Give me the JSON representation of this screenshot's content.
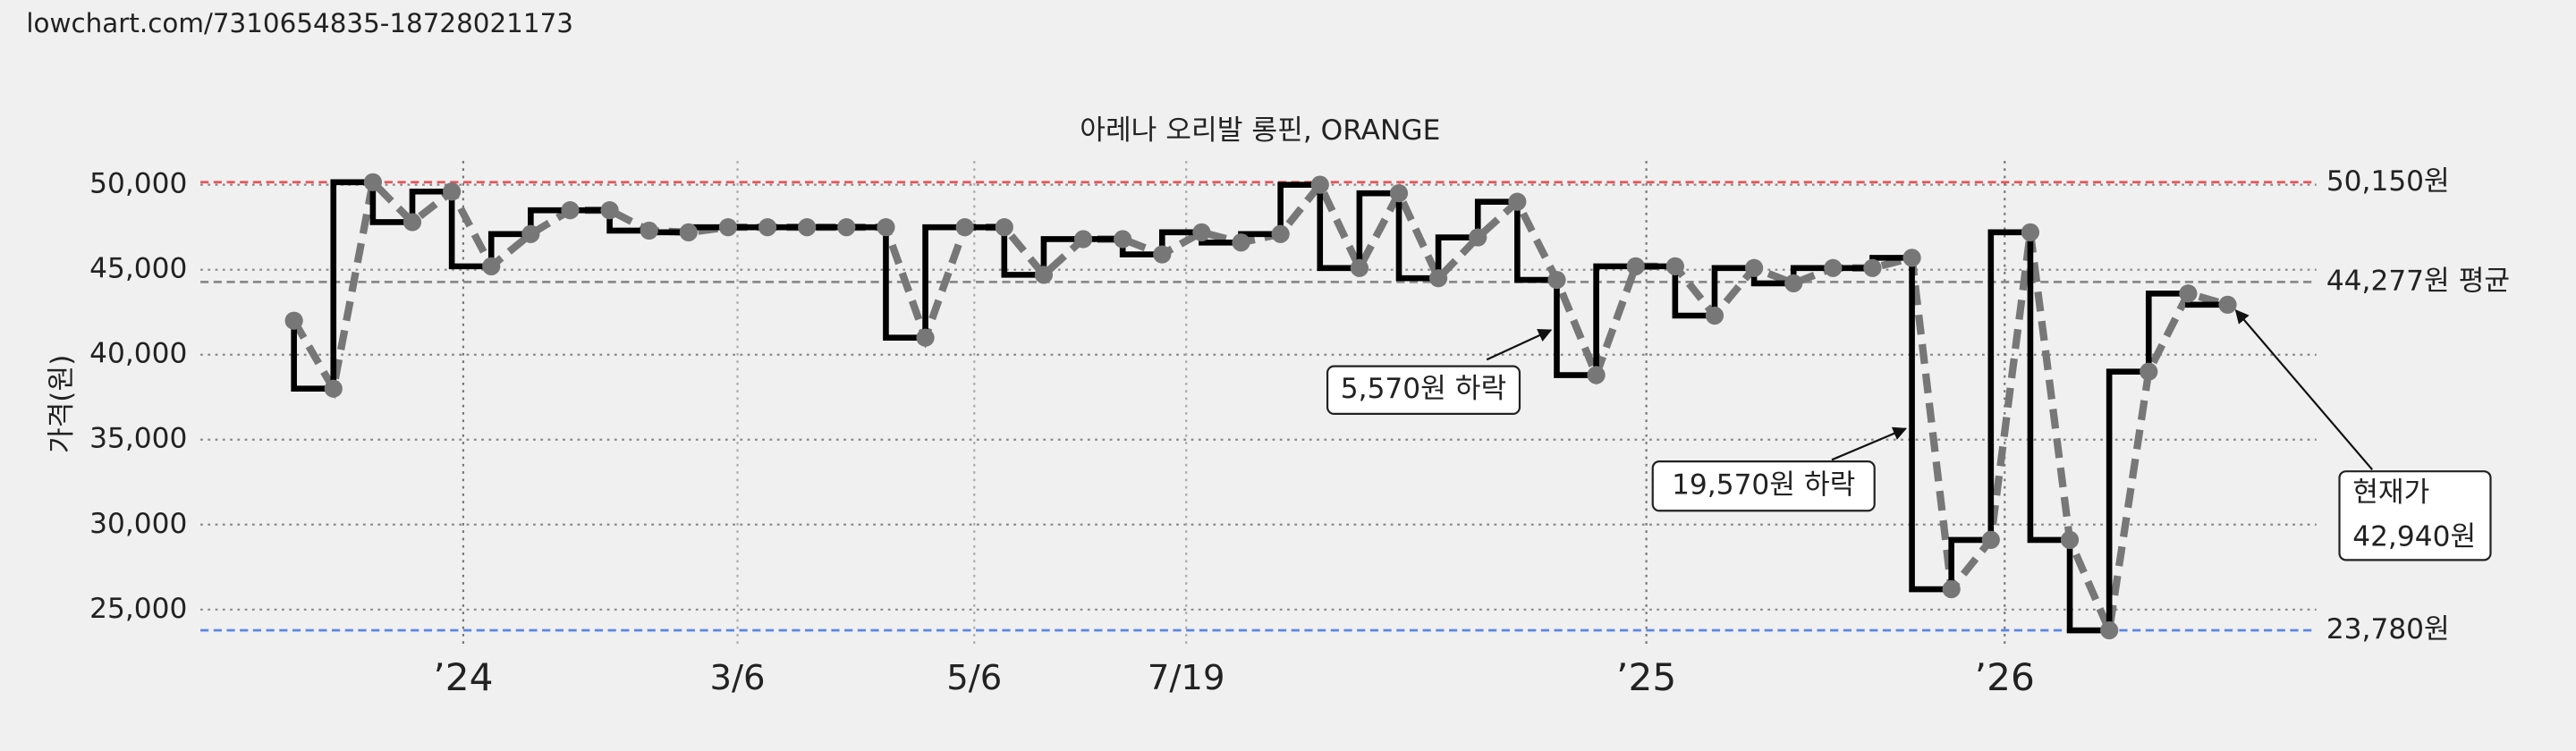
{
  "header": {
    "url": "lowchart.com/7310654835-18728021173"
  },
  "chart_data": {
    "type": "line",
    "title": "아레나 오리발 롱핀, ORANGE",
    "ylabel": "가격(원)",
    "x": [
      0,
      1,
      2,
      3,
      4,
      5,
      6,
      7,
      8,
      9,
      10,
      11,
      12,
      13,
      14,
      15,
      16,
      17,
      18,
      19,
      20,
      21,
      22,
      23,
      24,
      25,
      26,
      27,
      28,
      29,
      30,
      31,
      32,
      33,
      34,
      35,
      36,
      37,
      38,
      39,
      40,
      41,
      42,
      43,
      44,
      45,
      46,
      47,
      48,
      49
    ],
    "series": [
      {
        "color": "#000000",
        "values": [
          42000,
          38000,
          50150,
          47800,
          49600,
          45200,
          47100,
          48500,
          48500,
          47300,
          47200,
          47500,
          47500,
          47500,
          47500,
          47500,
          41000,
          47500,
          47500,
          44700,
          46800,
          46800,
          45900,
          47200,
          46600,
          47100,
          50000,
          45100,
          49500,
          44500,
          46900,
          49000,
          44400,
          38800,
          45200,
          45200,
          42300,
          45100,
          44200,
          45100,
          45100,
          45700,
          26200,
          29100,
          47200,
          29100,
          23780,
          39000,
          43600,
          42940
        ]
      }
    ],
    "xlim": [
      -2.37,
      51.25
    ],
    "xticks": [
      {
        "value": 4.29,
        "label": "’24"
      },
      {
        "value": 11.24,
        "label": "3/6"
      },
      {
        "value": 17.24,
        "label": "5/6"
      },
      {
        "value": 22.61,
        "label": "7/19"
      },
      {
        "value": 34.27,
        "label": "’25"
      },
      {
        "value": 43.35,
        "label": "’26"
      }
    ],
    "ylim": [
      22700,
      51400
    ],
    "yticks": [
      {
        "value": 25000,
        "label": "25,000"
      },
      {
        "value": 30000,
        "label": "30,000"
      },
      {
        "value": 35000,
        "label": "35,000"
      },
      {
        "value": 40000,
        "label": "40,000"
      },
      {
        "value": 45000,
        "label": "45,000"
      },
      {
        "value": 50000,
        "label": "50,000"
      }
    ],
    "grid": true,
    "reference_lines": [
      {
        "value": 50150,
        "label": "50,150원",
        "color": "#e8555a"
      },
      {
        "value": 44277,
        "label": "44,277원 평균",
        "color": "#8a8a8a"
      },
      {
        "value": 23780,
        "label": "23,780원",
        "color": "#5b86e5"
      }
    ],
    "annotations": [
      {
        "lines": [
          "5,570원 하락"
        ]
      },
      {
        "lines": [
          "19,570원 하락"
        ]
      },
      {
        "lines": [
          "현재가",
          "42,940원"
        ]
      }
    ]
  }
}
